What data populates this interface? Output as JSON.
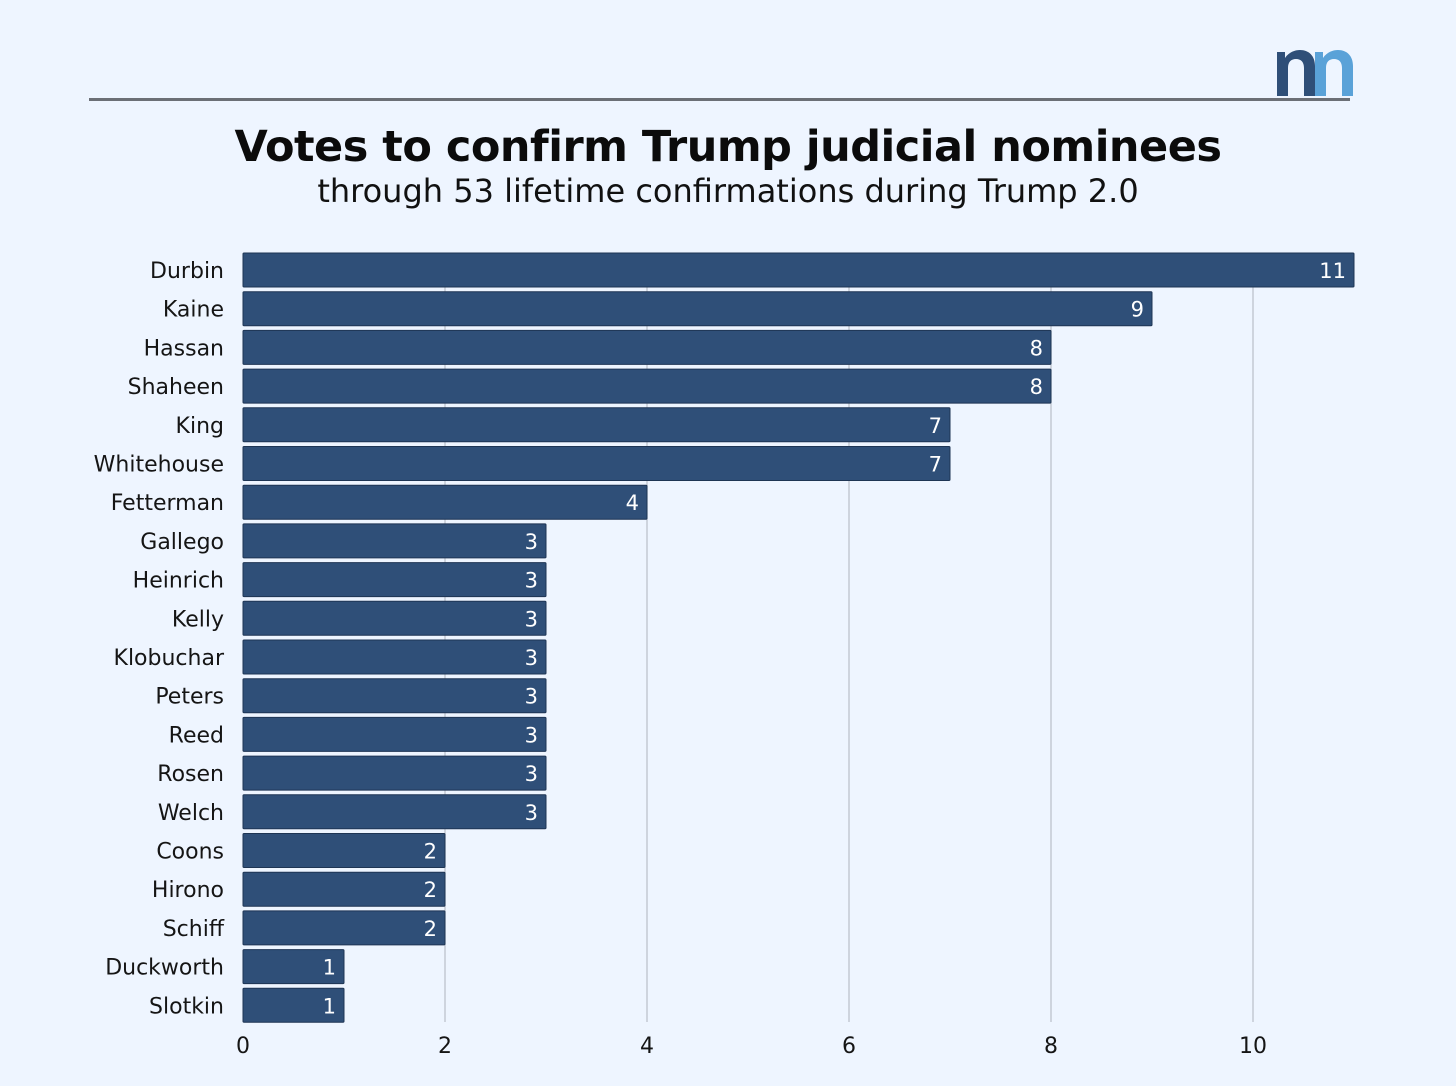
{
  "header": {
    "logo_icon": "nn-logo",
    "title": "Votes to confirm Trump judicial nominees",
    "subtitle": "through 53 lifetime confirmations during Trump 2.0"
  },
  "colors": {
    "background": "#eef5ff",
    "bar": "#2f4f78",
    "logo_dark": "#2f4f78",
    "logo_light": "#5aa2d8",
    "gridline": "#b9bfc9"
  },
  "chart_data": {
    "type": "bar",
    "orientation": "horizontal",
    "title": "Votes to confirm Trump judicial nominees",
    "subtitle": "through 53 lifetime confirmations during Trump 2.0",
    "categories": [
      "Durbin",
      "Kaine",
      "Hassan",
      "Shaheen",
      "King",
      "Whitehouse",
      "Fetterman",
      "Gallego",
      "Heinrich",
      "Kelly",
      "Klobuchar",
      "Peters",
      "Reed",
      "Rosen",
      "Welch",
      "Coons",
      "Hirono",
      "Schiff",
      "Duckworth",
      "Slotkin"
    ],
    "values": [
      11,
      9,
      8,
      8,
      7,
      7,
      4,
      3,
      3,
      3,
      3,
      3,
      3,
      3,
      3,
      2,
      2,
      2,
      1,
      1
    ],
    "xlim": [
      0,
      11
    ],
    "xticks": [
      0,
      2,
      4,
      6,
      8,
      10
    ],
    "grid": true,
    "legend": "none",
    "data_labels": true
  }
}
